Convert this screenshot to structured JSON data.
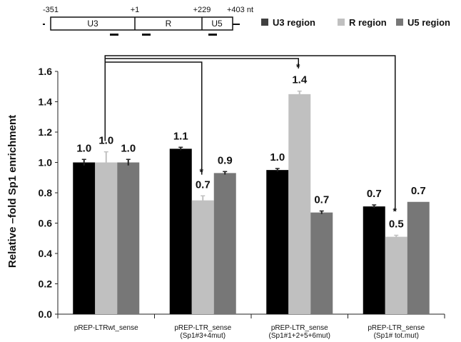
{
  "schematic": {
    "positions": [
      "-351",
      "+1",
      "+229",
      "+403 nt"
    ],
    "regions": [
      "U3",
      "R",
      "U5"
    ]
  },
  "legend": [
    {
      "label": "U3 region",
      "color": "#404040"
    },
    {
      "label": "R region",
      "color": "#c0c0c0"
    },
    {
      "label": "U5 region",
      "color": "#777777"
    }
  ],
  "chart_data": {
    "type": "bar",
    "ylabel": "Relative –fold Sp1 enrichment",
    "ylim": [
      0.0,
      1.6
    ],
    "yticks": [
      "0.0",
      "0.2",
      "0.4",
      "0.6",
      "0.8",
      "1.0",
      "1.2",
      "1.4",
      "1.6"
    ],
    "categories": [
      [
        "pREP-LTRwt_sense"
      ],
      [
        "pREP-LTR_sense",
        "(Sp1#3+4mut)"
      ],
      [
        "pREP-LTR_sense",
        "(Sp1#1+2+5+6mut)"
      ],
      [
        "pREP-LTR_sense",
        "(Sp1# tot.mut)"
      ]
    ],
    "series": [
      {
        "name": "U3 region",
        "color": "#000000",
        "values": [
          1.0,
          1.09,
          0.95,
          0.71
        ],
        "errors": [
          0.02,
          0.01,
          0.01,
          0.01
        ],
        "labels": [
          "1.0",
          "1.1",
          "1.0",
          "0.7"
        ]
      },
      {
        "name": "R region",
        "color": "#c0c0c0",
        "values": [
          1.0,
          0.75,
          1.45,
          0.51
        ],
        "errors": [
          0.07,
          0.03,
          0.02,
          0.01
        ],
        "labels": [
          "1.0",
          "0.7",
          "1.4",
          "0.5"
        ]
      },
      {
        "name": "U5 region",
        "color": "#777777",
        "values": [
          1.0,
          0.93,
          0.67,
          0.74
        ],
        "errors": [
          0.02,
          0.01,
          0.01,
          0.0
        ],
        "labels": [
          "1.0",
          "0.9",
          "0.7",
          "0.7"
        ]
      }
    ],
    "significance": [
      {
        "group": 1,
        "series": 1,
        "mark": "*"
      },
      {
        "group": 2,
        "series": 1,
        "mark": "*"
      },
      {
        "group": 3,
        "series": 1,
        "mark": "*"
      }
    ]
  }
}
